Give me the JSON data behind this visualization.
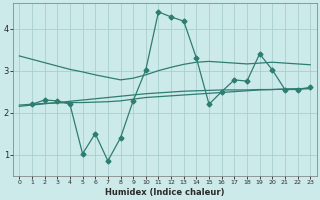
{
  "background_color": "#cdeaea",
  "grid_color": "#aacece",
  "line_color": "#2e7d72",
  "xlabel": "Humidex (Indice chaleur)",
  "xlim": [
    -0.5,
    23.5
  ],
  "ylim": [
    0.5,
    4.6
  ],
  "yticks": [
    1,
    2,
    3,
    4
  ],
  "xticks": [
    0,
    1,
    2,
    3,
    4,
    5,
    6,
    7,
    8,
    9,
    10,
    11,
    12,
    13,
    14,
    15,
    16,
    17,
    18,
    19,
    20,
    21,
    22,
    23
  ],
  "series1_x": [
    0,
    1,
    2,
    3,
    4,
    5,
    6,
    7,
    8,
    9,
    10,
    11,
    12,
    13,
    14,
    15,
    16,
    17,
    18,
    19,
    20,
    21,
    22,
    23
  ],
  "series1_y": [
    3.35,
    3.27,
    3.19,
    3.11,
    3.03,
    2.97,
    2.9,
    2.84,
    2.78,
    2.82,
    2.9,
    3.0,
    3.08,
    3.15,
    3.2,
    3.22,
    3.2,
    3.18,
    3.16,
    3.18,
    3.2,
    3.18,
    3.16,
    3.14
  ],
  "series2_x": [
    0,
    1,
    2,
    3,
    4,
    5,
    6,
    7,
    8,
    9,
    10,
    11,
    12,
    13,
    14,
    15,
    16,
    17,
    18,
    19,
    20,
    21,
    22,
    23
  ],
  "series2_y": [
    2.15,
    2.18,
    2.21,
    2.24,
    2.27,
    2.3,
    2.33,
    2.36,
    2.39,
    2.42,
    2.45,
    2.47,
    2.49,
    2.51,
    2.52,
    2.53,
    2.54,
    2.54,
    2.54,
    2.55,
    2.55,
    2.56,
    2.56,
    2.57
  ],
  "series3_x": [
    0,
    1,
    2,
    3,
    4,
    5,
    6,
    7,
    8,
    9,
    10,
    11,
    12,
    13,
    14,
    15,
    16,
    17,
    18,
    19,
    20,
    21,
    22,
    23
  ],
  "series3_y": [
    2.18,
    2.2,
    2.22,
    2.23,
    2.24,
    2.24,
    2.25,
    2.26,
    2.28,
    2.32,
    2.36,
    2.38,
    2.4,
    2.42,
    2.44,
    2.46,
    2.48,
    2.5,
    2.52,
    2.54,
    2.55,
    2.56,
    2.57,
    2.58
  ],
  "series4_x": [
    1,
    2,
    3,
    4,
    5,
    6,
    7,
    8,
    9,
    10,
    11,
    12,
    13,
    14,
    15,
    16,
    17,
    18,
    19,
    20,
    21,
    22,
    23
  ],
  "series4_y": [
    2.2,
    2.3,
    2.28,
    2.2,
    1.02,
    1.5,
    0.85,
    1.4,
    2.28,
    3.02,
    4.4,
    4.28,
    4.18,
    3.3,
    2.2,
    2.5,
    2.78,
    2.75,
    3.4,
    3.02,
    2.55,
    2.55,
    2.6
  ],
  "marker": "D",
  "markersize": 2.5
}
